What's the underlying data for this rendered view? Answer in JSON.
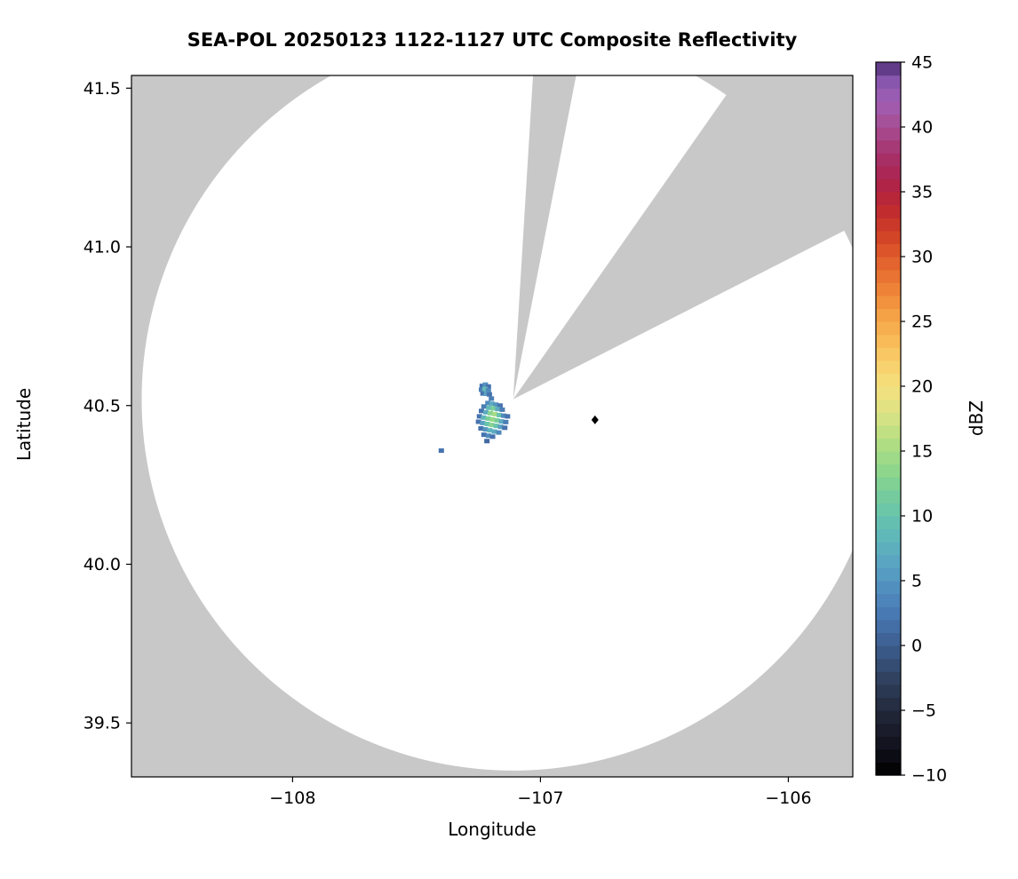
{
  "figure": {
    "background": "#ffffff"
  },
  "chart_data": {
    "type": "heatmap",
    "subtype": "radar-composite-reflectivity-ppi",
    "title": "SEA-POL 20250123 1122-1127 UTC Composite Reflectivity",
    "xlabel": "Longitude",
    "ylabel": "Latitude",
    "xlim": [
      -108.65,
      -105.74
    ],
    "ylim": [
      39.33,
      41.54
    ],
    "grid": false,
    "x_ticks": {
      "values": [
        -108,
        -107,
        -106
      ],
      "labels": [
        "−108",
        "−107",
        "−106"
      ]
    },
    "y_ticks": {
      "values": [
        39.5,
        40.0,
        40.5,
        41.0,
        41.5
      ],
      "labels": [
        "39.5",
        "40.0",
        "40.5",
        "41.0",
        "41.5"
      ]
    },
    "colors": {
      "no_coverage_gray": "#c8c8c8",
      "coverage_white": "#ffffff",
      "frame": "#000000",
      "marker": "#000000"
    },
    "radar": {
      "center_lon": -107.11,
      "center_lat": 40.52,
      "range_deg_lat": 1.17,
      "missing_sectors_azimuth_deg": [
        [
          3.5,
          11
        ],
        [
          35,
          63
        ]
      ]
    },
    "marker": {
      "lon": -106.78,
      "lat": 40.455,
      "shape": "diamond",
      "color": "#000000"
    },
    "colorbar": {
      "label": "dBZ",
      "min": -10,
      "max": 45,
      "step_dbz": 1,
      "ticks": [
        -10,
        -5,
        0,
        5,
        10,
        15,
        20,
        25,
        30,
        35,
        40,
        45
      ],
      "tick_labels": [
        "−10",
        "−5",
        "0",
        "5",
        "10",
        "15",
        "20",
        "25",
        "30",
        "35",
        "40",
        "45"
      ],
      "stops": [
        [
          -10,
          "#000000"
        ],
        [
          -8,
          "#10101a"
        ],
        [
          -6,
          "#1d2030"
        ],
        [
          -4,
          "#283349"
        ],
        [
          -2,
          "#334768"
        ],
        [
          0,
          "#3c5d8f"
        ],
        [
          2,
          "#4673ae"
        ],
        [
          4,
          "#4f8abc"
        ],
        [
          6,
          "#58a0c2"
        ],
        [
          8,
          "#5fb4bd"
        ],
        [
          10,
          "#67c3ad"
        ],
        [
          12,
          "#79ce97"
        ],
        [
          14,
          "#95d888"
        ],
        [
          16,
          "#b8df83"
        ],
        [
          18,
          "#dce384"
        ],
        [
          20,
          "#f5df7f"
        ],
        [
          22,
          "#f9cd68"
        ],
        [
          24,
          "#f8b552"
        ],
        [
          26,
          "#f49a42"
        ],
        [
          28,
          "#ec7b35"
        ],
        [
          30,
          "#e05c2b"
        ],
        [
          32,
          "#cf3d26"
        ],
        [
          34,
          "#bc2732"
        ],
        [
          36,
          "#ab234e"
        ],
        [
          38,
          "#a5336d"
        ],
        [
          40,
          "#a74d92"
        ],
        [
          42,
          "#a05fb4"
        ],
        [
          44,
          "#8053ab"
        ],
        [
          45,
          "#432366"
        ]
      ]
    },
    "echoes_lon_lat_dbz": [
      [
        -107.235,
        40.562,
        2
      ],
      [
        -107.222,
        40.566,
        5
      ],
      [
        -107.21,
        40.56,
        2
      ],
      [
        -107.238,
        40.55,
        3
      ],
      [
        -107.224,
        40.552,
        9
      ],
      [
        -107.21,
        40.548,
        4
      ],
      [
        -107.232,
        40.538,
        2
      ],
      [
        -107.218,
        40.537,
        6
      ],
      [
        -107.206,
        40.535,
        2
      ],
      [
        -107.198,
        40.522,
        3
      ],
      [
        -107.212,
        40.508,
        4
      ],
      [
        -107.196,
        40.506,
        7
      ],
      [
        -107.18,
        40.503,
        5
      ],
      [
        -107.163,
        40.5,
        2
      ],
      [
        -107.228,
        40.497,
        3
      ],
      [
        -107.208,
        40.493,
        9
      ],
      [
        -107.19,
        40.491,
        12
      ],
      [
        -107.172,
        40.489,
        7
      ],
      [
        -107.154,
        40.487,
        3
      ],
      [
        -107.238,
        40.483,
        2
      ],
      [
        -107.22,
        40.479,
        7
      ],
      [
        -107.202,
        40.476,
        13
      ],
      [
        -107.184,
        40.473,
        15
      ],
      [
        -107.166,
        40.47,
        10
      ],
      [
        -107.148,
        40.468,
        4
      ],
      [
        -107.133,
        40.466,
        2
      ],
      [
        -107.246,
        40.466,
        2
      ],
      [
        -107.229,
        40.462,
        8
      ],
      [
        -107.211,
        40.459,
        12
      ],
      [
        -107.193,
        40.456,
        14
      ],
      [
        -107.175,
        40.453,
        12
      ],
      [
        -107.157,
        40.45,
        7
      ],
      [
        -107.14,
        40.448,
        3
      ],
      [
        -107.25,
        40.449,
        2
      ],
      [
        -107.233,
        40.445,
        6
      ],
      [
        -107.215,
        40.442,
        10
      ],
      [
        -107.197,
        40.439,
        13
      ],
      [
        -107.179,
        40.436,
        10
      ],
      [
        -107.161,
        40.433,
        6
      ],
      [
        -107.144,
        40.43,
        2
      ],
      [
        -107.24,
        40.428,
        2
      ],
      [
        -107.222,
        40.425,
        5
      ],
      [
        -107.204,
        40.422,
        8
      ],
      [
        -107.186,
        40.418,
        7
      ],
      [
        -107.168,
        40.415,
        4
      ],
      [
        -107.228,
        40.408,
        2
      ],
      [
        -107.21,
        40.405,
        4
      ],
      [
        -107.193,
        40.402,
        2
      ],
      [
        -107.216,
        40.388,
        1
      ],
      [
        -107.4,
        40.358,
        2
      ]
    ]
  }
}
